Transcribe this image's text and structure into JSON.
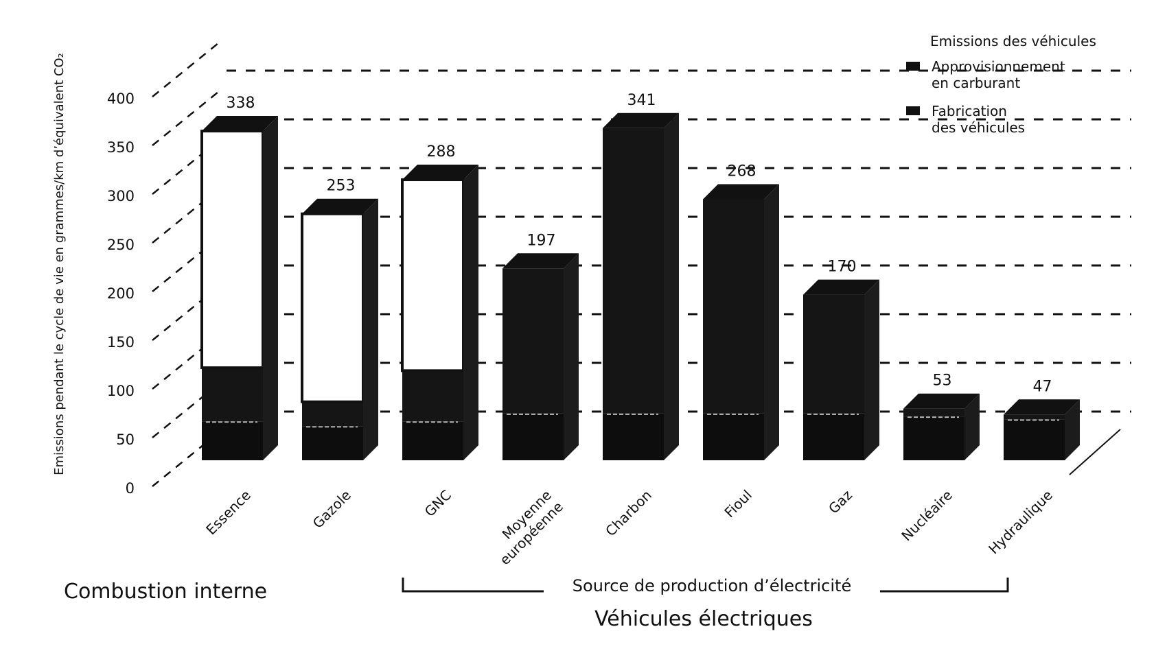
{
  "chart_data": {
    "type": "bar",
    "stacked": true,
    "three_d": true,
    "ylabel": "Emissions pendant le cycle de vie en grammes/km d’équivalent CO₂",
    "ylim": [
      0,
      400
    ],
    "yticks": [
      0,
      50,
      100,
      150,
      200,
      250,
      300,
      350,
      400
    ],
    "grid": true,
    "legend_placement": "top-right",
    "legend": {
      "title": "Emissions des véhicules",
      "items": [
        "Approvisionnement en carburant",
        "Fabrication des véhicules"
      ],
      "item_lines": [
        [
          "Approvisionnement",
          "en carburant"
        ],
        [
          "Fabrication",
          "des véhicules"
        ]
      ]
    },
    "categories": [
      "Essence",
      "Gazole",
      "GNC",
      "Moyenne européenne",
      "Charbon",
      "Fioul",
      "Gaz",
      "Nucléaire",
      "Hydraulique"
    ],
    "category_lines": [
      [
        "Essence"
      ],
      [
        "Gazole"
      ],
      [
        "GNC"
      ],
      [
        "Moyenne",
        "européenne"
      ],
      [
        "Charbon"
      ],
      [
        "Fioul"
      ],
      [
        "Gaz"
      ],
      [
        "Nucléaire"
      ],
      [
        "Hydraulique"
      ]
    ],
    "totals": [
      338,
      253,
      288,
      197,
      341,
      268,
      170,
      53,
      47
    ],
    "series": [
      {
        "name": "Fabrication des véhicules",
        "values": [
          40,
          35,
          40,
          48,
          48,
          48,
          48,
          45,
          42
        ]
      },
      {
        "name": "Approvisionnement en carburant",
        "values": [
          55,
          25,
          52,
          149,
          293,
          220,
          122,
          8,
          5
        ]
      },
      {
        "name": "Emissions des véhicules",
        "values": [
          243,
          193,
          196,
          0,
          0,
          0,
          0,
          0,
          0
        ]
      }
    ],
    "groups": {
      "combustion": "Combustion interne",
      "source": "Source de production d’électricité",
      "electric": "Véhicules électriques"
    }
  }
}
